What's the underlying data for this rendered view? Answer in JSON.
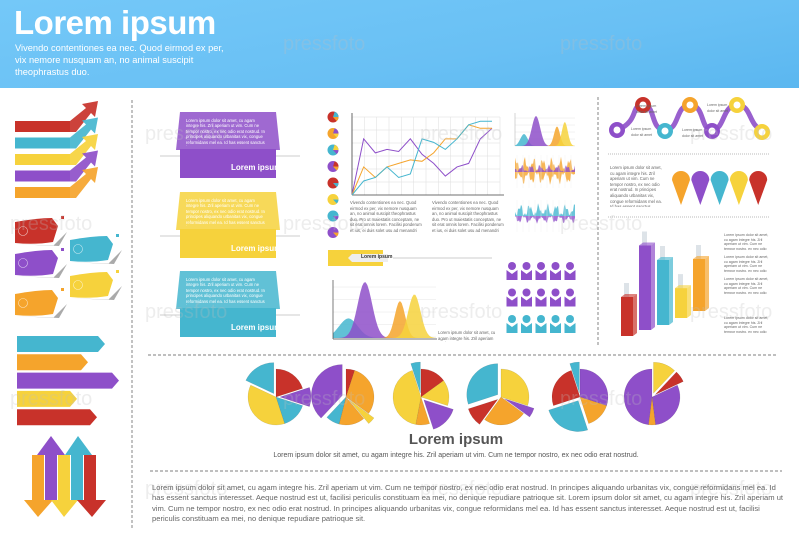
{
  "header": {
    "title": "Lorem ipsum",
    "subtitle": "Vivendo contentiones ea nec. Quod eirmod ex per, vix nemore nusquam an, no animal suscipit theophrastus duo.",
    "background": "#6ec3f5"
  },
  "palette": {
    "red": "#c8322a",
    "teal": "#45b6cf",
    "yellow": "#f6d23c",
    "purple": "#8e4fc9",
    "orange": "#f5a42c"
  },
  "watermark": "pressfoto",
  "cards": [
    {
      "label": "Lorem ipsum",
      "color": "#8e4fc9",
      "text": "Lorem ipsum dolor sit amet, cu agam integre his. Zril aperiam ut vim. Cum ne tempor nostro, ex nec odio erat nostrud. In principes aliquando urbanitas vix, congue reformidans mel ea. Id has essent sanctus interesset."
    },
    {
      "label": "Lorem ipsum",
      "color": "#f6d23c",
      "text": "Lorem ipsum dolor sit amet, cu agam integre his. Zril aperiam ut vim. Cum ne tempor nostro, ex nec odio erat nostrud. In principes aliquando urbanitas vix, congue reformidans mel ea. Id has essent sanctus interesset."
    },
    {
      "label": "Lorem ipsum",
      "color": "#45b6cf",
      "text": "Lorem ipsum dolor sit amet, cu agam integre his. Zril aperiam ut vim. Cum ne tempor nostro, ex nec odio erat nostrud. In principes aliquando urbanitas vix, congue reformidans mel ea. Id has essent sanctus interesset."
    }
  ],
  "line_chart": {
    "type": "line",
    "ylim": [
      0,
      10
    ],
    "series": [
      {
        "color": "#8e4fc9",
        "values": [
          0,
          8,
          6,
          6.5,
          6.2,
          8,
          5.8,
          4.5,
          2.7,
          4,
          4.5,
          8,
          9.5
        ]
      },
      {
        "color": "#f5a42c",
        "values": [
          0,
          4,
          2.5,
          4,
          4.5,
          5,
          4.8,
          6,
          8,
          8,
          10,
          9.5,
          9.5
        ]
      },
      {
        "color": "#45b6cf",
        "values": [
          0,
          2,
          2.5,
          4,
          2.5,
          3,
          8,
          7.5,
          6.5,
          8,
          10,
          10.5,
          10.5
        ]
      }
    ]
  },
  "captions": {
    "left": "Vivendo contentiones ea nec. Quod eirmod ex per, vix nemore nusquam an, no animal suscipit theophrastus duo. Pro ut maiestatis conceptam, ne sit erat omnis lorem. Facilisi ponderum et ius, ei duis solet usu ad menandri indoctum suscipiantur mea.",
    "right": "Vivendo contentiones ea nec. Quod eirmod ex per, vix nemore nusquam an, no animal suscipit theophrastus duo. Pro ut maiestatis conceptam, ne sit erat omnis lorem. Facilisi ponderum et ius, ei duis solet usu ad menandri indoctum suscipiantur mea."
  },
  "tag_label": "Lorem ipsum",
  "distribution_caption": "Lorem ipsum dolor sit amet, cu agam integre his. Zril aperiam ut vim.",
  "people_rows": [
    {
      "color": "#8e4fc9",
      "count": 5
    },
    {
      "color": "#8e4fc9",
      "count": 5
    },
    {
      "color": "#45b6cf",
      "count": 5
    }
  ],
  "right_panel": {
    "timeline_notes": [
      "Lorem ipsum dolor sit amet",
      "Lorem ipsum dolor sit amet",
      "Lorem ipsum dolor sit amet",
      "Lorem ipsum dolor sit amet"
    ],
    "pins_text": "Lorem ipsum dolor sit amet, cu agam integre his. Zril aperiam ut vim. Cum ne tempor nostro, ex nec odio erat nostrud. In principes aliquando urbanitas vix, congue reformidans mel ea. Id has essent sanctus interesset. Aeque nostrud est ut, facilisi periculis constituam ea mei, no denique repudiare patrioque sit.",
    "bars": [
      {
        "color": "#c8322a",
        "value": 3
      },
      {
        "color": "#8e4fc9",
        "value": 6.5
      },
      {
        "color": "#45b6cf",
        "value": 5
      },
      {
        "color": "#f6d23c",
        "value": 2.3
      },
      {
        "color": "#f5a42c",
        "value": 4
      }
    ],
    "bar_notes": [
      "Lorem ipsum dolor sit amet, cu agam integre his. Zril aperiam ut vim. Cum ne tempor nostro, ex nec odio erat nostrud.",
      "Lorem ipsum dolor sit amet, cu agam integre his. Zril aperiam ut vim. Cum ne tempor nostro, ex nec odio erat nostrud.",
      "Lorem ipsum dolor sit amet, cu agam integre his. Zril aperiam ut vim. Cum ne tempor nostro, ex nec odio erat nostrud.",
      "Lorem ipsum dolor sit amet, cu agam integre his. Zril aperiam ut vim. Cum ne tempor nostro, ex nec odio erat nostrud."
    ]
  },
  "pies": [
    [
      {
        "c": "#c8322a",
        "v": 0.2
      },
      {
        "c": "#8e4fc9",
        "v": 0.1,
        "x": 1
      },
      {
        "c": "#45b6cf",
        "v": 0.15
      },
      {
        "c": "#f6d23c",
        "v": 0.37
      },
      {
        "c": "#45b6cf",
        "v": 0.18,
        "x": 1
      }
    ],
    [
      {
        "c": "#c8322a",
        "v": 0.05
      },
      {
        "c": "#f5a42c",
        "v": 0.3
      },
      {
        "c": "#f6d23c",
        "v": 0.04,
        "x": 1
      },
      {
        "c": "#f5a42c",
        "v": 0.15
      },
      {
        "c": "#45b6cf",
        "v": 0.08
      },
      {
        "c": "#8e4fc9",
        "v": 0.38,
        "x": 1
      }
    ],
    [
      {
        "c": "#c8322a",
        "v": 0.15
      },
      {
        "c": "#f6d23c",
        "v": 0.15
      },
      {
        "c": "#8e4fc9",
        "v": 0.15,
        "x": 1
      },
      {
        "c": "#f5a42c",
        "v": 0.08
      },
      {
        "c": "#f6d23c",
        "v": 0.42
      },
      {
        "c": "#45b6cf",
        "v": 0.05,
        "x": 1
      }
    ],
    [
      {
        "c": "#f6d23c",
        "v": 0.3
      },
      {
        "c": "#8e4fc9",
        "v": 0.05,
        "x": 1
      },
      {
        "c": "#f5a42c",
        "v": 0.25
      },
      {
        "c": "#c8322a",
        "v": 0.1,
        "x": 1
      },
      {
        "c": "#45b6cf",
        "v": 0.3,
        "x": 1
      }
    ],
    [
      {
        "c": "#8e4fc9",
        "v": 0.3
      },
      {
        "c": "#f5a42c",
        "v": 0.15
      },
      {
        "c": "#45b6cf",
        "v": 0.25,
        "x": 1
      },
      {
        "c": "#c8322a",
        "v": 0.25
      },
      {
        "c": "#45b6cf",
        "v": 0.05,
        "x": 1
      }
    ],
    [
      {
        "c": "#f6d23c",
        "v": 0.12,
        "x": 1
      },
      {
        "c": "#c8322a",
        "v": 0.06,
        "x": 1
      },
      {
        "c": "#8e4fc9",
        "v": 0.3
      },
      {
        "c": "#f5a42c",
        "v": 0.04
      },
      {
        "c": "#8e4fc9",
        "v": 0.48
      }
    ]
  ],
  "mini_pies": [
    [
      "#c8322a",
      "#45b6cf",
      "#f5a42c"
    ],
    [
      "#f5a42c",
      "#8e4fc9",
      "#f6d23c"
    ],
    [
      "#45b6cf",
      "#f6d23c",
      "#8e4fc9"
    ],
    [
      "#8e4fc9",
      "#c8322a",
      "#f5a42c"
    ],
    [
      "#c8322a",
      "#c8322a",
      "#45b6cf"
    ],
    [
      "#f6d23c",
      "#f6d23c",
      "#45b6cf"
    ],
    [
      "#45b6cf",
      "#45b6cf",
      "#8e4fc9"
    ],
    [
      "#8e4fc9",
      "#8e4fc9",
      "#f5a42c"
    ]
  ],
  "section": {
    "title": "Lorem ipsum",
    "subtitle": "Lorem ipsum dolor sit amet, cu agam integre his. Zril aperiam ut vim. Cum ne tempor nostro, ex nec odio erat nostrud.",
    "paragraph": "Lorem ipsum dolor sit amet, cu agam integre his. Zril aperiam ut vim. Cum ne tempor nostro, ex nec odio erat nostrud. In principes aliquando urbanitas vix, congue reformidans mel ea. Id has essent sanctus interesset. Aeque nostrud est ut, facilisi periculis constituam ea mei, no denique repudiare patrioque sit. Lorem ipsum dolor sit amet, cu agam integre his. Zril aperiam ut vim. Cum ne tempor nostro, ex nec odio erat nostrud. In principes aliquando urbanitas vix, congue reformidans mel ea. Id has essent sanctus interesset. Aeque nostrud est ut, facilisi periculis constituam ea mei, no denique repudiare patrioque sit."
  }
}
